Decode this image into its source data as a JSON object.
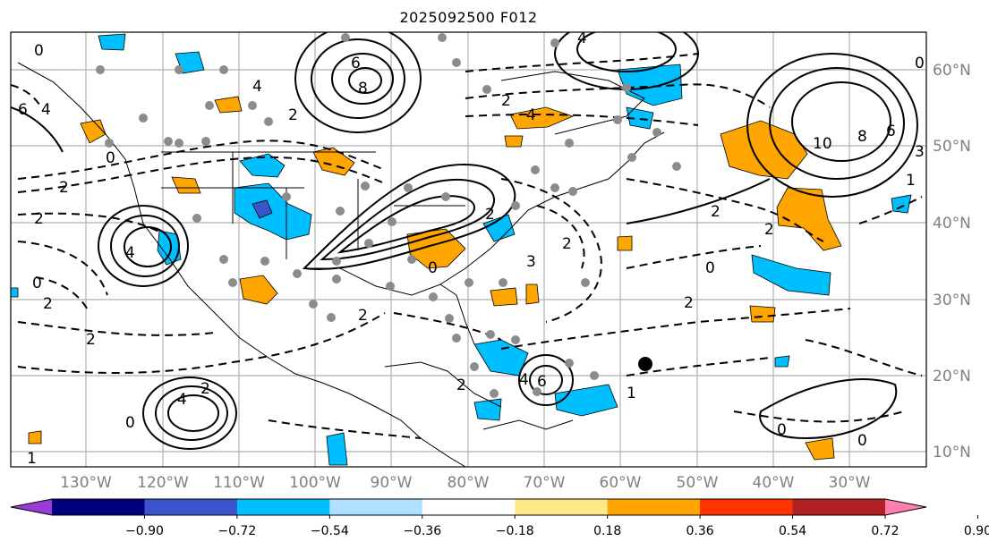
{
  "title": "2025092500 F012",
  "lat_labels": [
    "60°N",
    "50°N",
    "40°N",
    "30°N",
    "20°N",
    "10°N"
  ],
  "lon_labels": [
    "130°W",
    "120°W",
    "110°W",
    "100°W",
    "90°W",
    "80°W",
    "70°W",
    "60°W",
    "50°W",
    "40°W",
    "30°W"
  ],
  "colorbar": {
    "extend": "both",
    "colors": [
      "#9a3bd8",
      "#00007f",
      "#3a55cc",
      "#00bfff",
      "#aee0ff",
      "#ffffff",
      "#ffe88a",
      "#ffa500",
      "#ff3300",
      "#b22222",
      "#ff80b0"
    ],
    "ticks": [
      "−0.90",
      "−0.72",
      "−0.54",
      "−0.36",
      "−0.18",
      "0.18",
      "0.36",
      "0.54",
      "0.72",
      "0.90"
    ]
  },
  "contour_labels": [
    "6",
    "4",
    "0",
    "2",
    "6",
    "8",
    "10",
    "8",
    "6",
    "4",
    "2",
    "0",
    "2",
    "4",
    "2",
    "0",
    "2",
    "4",
    "2",
    "2",
    "2",
    "2",
    "0",
    "0",
    "2",
    "4",
    "2",
    "3",
    "2",
    "0",
    "6",
    "2",
    "1",
    "1",
    "4",
    "4",
    "3",
    "1",
    "0",
    "0",
    "0",
    "2"
  ],
  "markers": {
    "storm_center": "large black dot near 22°N 57°W"
  }
}
